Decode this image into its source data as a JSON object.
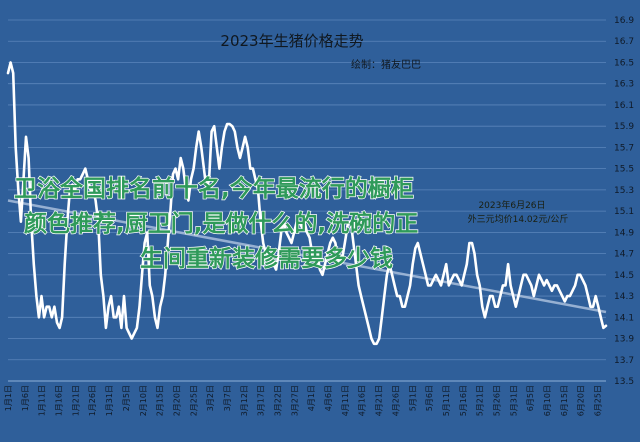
{
  "chart_data": {
    "type": "line",
    "title": "2023年生猪价格走势",
    "subtitle": "绘制：猪友巴巴",
    "annotation": {
      "line1": "2023年6月26日",
      "line2": "外三元均价14.02元/公斤"
    },
    "overlay_text": [
      "卫浴全国排名前十名,今年最流行的橱柜",
      "颜色推荐,厨卫门,是做什么的,洗碗的正",
      "生间重新装修需要多少钱"
    ],
    "ylim": [
      13.5,
      16.9
    ],
    "y_ticks": [
      "13.5",
      "13.7",
      "13.9",
      "14.1",
      "14.3",
      "14.5",
      "14.7",
      "14.9",
      "15.1",
      "15.3",
      "15.5",
      "15.7",
      "15.9",
      "16.1",
      "16.3",
      "16.5",
      "16.7",
      "16.9"
    ],
    "x_ticks": [
      "1月1日",
      "1月6日",
      "1月11日",
      "1月16日",
      "1月21日",
      "1月26日",
      "1月31日",
      "2月5日",
      "2月10日",
      "2月15日",
      "2月20日",
      "2月25日",
      "3月2日",
      "3月7日",
      "3月12日",
      "3月17日",
      "3月22日",
      "3月27日",
      "4月1日",
      "4月6日",
      "4月11日",
      "4月16日",
      "4月21日",
      "4月26日",
      "5月1日",
      "5月6日",
      "5月11日",
      "5月16日",
      "5月21日",
      "5月26日",
      "5月31日",
      "6月5日",
      "6月10日",
      "6月15日",
      "6月20日",
      "6月25日"
    ],
    "series": [
      {
        "values": [
          16.4,
          16.5,
          16.4,
          15.7,
          15.3,
          15.0,
          15.4,
          15.8,
          15.6,
          15.0,
          14.6,
          14.3,
          14.1,
          14.3,
          14.1,
          14.2,
          14.2,
          14.1,
          14.2,
          14.05,
          14.0,
          14.1,
          14.6,
          15.0,
          15.3,
          15.35,
          15.3,
          15.4,
          15.4,
          15.45,
          15.5,
          15.4,
          15.3,
          15.3,
          15.2,
          15.0,
          14.5,
          14.3,
          14.0,
          14.2,
          14.3,
          14.1,
          14.1,
          14.2,
          14.0,
          14.3,
          14.0,
          13.95,
          13.9,
          13.95,
          14.0,
          14.2,
          14.5,
          14.8,
          14.9,
          14.4,
          14.3,
          14.1,
          14.0,
          14.2,
          14.3,
          14.5,
          14.8,
          15.1,
          15.45,
          15.5,
          15.4,
          15.6,
          15.5,
          15.3,
          15.2,
          15.4,
          15.5,
          15.7,
          15.85,
          15.7,
          15.5,
          15.3,
          15.4,
          15.85,
          15.9,
          15.7,
          15.5,
          15.7,
          15.85,
          15.92,
          15.92,
          15.9,
          15.85,
          15.7,
          15.6,
          15.7,
          15.8,
          15.7,
          15.5,
          15.5,
          15.4,
          15.3,
          15.0,
          14.8,
          14.7,
          14.7,
          14.65,
          14.6,
          14.55,
          14.7,
          14.9,
          15.0,
          14.9,
          14.85,
          14.8,
          14.9,
          15.0,
          15.0,
          14.95,
          15.0,
          14.9,
          14.85,
          14.7,
          14.65,
          14.7,
          14.55,
          14.5,
          14.6,
          14.7,
          14.8,
          14.85,
          14.8,
          14.65,
          14.6,
          14.7,
          14.85,
          15.0,
          15.0,
          14.8,
          14.6,
          14.4,
          14.3,
          14.2,
          14.1,
          14.0,
          13.9,
          13.85,
          13.85,
          13.9,
          14.1,
          14.3,
          14.5,
          14.6,
          14.5,
          14.4,
          14.3,
          14.3,
          14.2,
          14.2,
          14.3,
          14.4,
          14.6,
          14.75,
          14.8,
          14.7,
          14.6,
          14.5,
          14.4,
          14.4,
          14.45,
          14.5,
          14.45,
          14.4,
          14.5,
          14.6,
          14.4,
          14.45,
          14.5,
          14.5,
          14.45,
          14.4,
          14.5,
          14.6,
          14.8,
          14.8,
          14.7,
          14.5,
          14.4,
          14.2,
          14.1,
          14.2,
          14.3,
          14.3,
          14.2,
          14.2,
          14.3,
          14.4,
          14.4,
          14.6,
          14.4,
          14.3,
          14.2,
          14.3,
          14.4,
          14.5,
          14.5,
          14.45,
          14.4,
          14.3,
          14.4,
          14.5,
          14.45,
          14.4,
          14.45,
          14.4,
          14.35,
          14.4,
          14.4,
          14.35,
          14.3,
          14.25,
          14.3,
          14.3,
          14.35,
          14.4,
          14.5,
          14.5,
          14.45,
          14.4,
          14.3,
          14.2,
          14.2,
          14.3,
          14.2,
          14.1,
          14.0,
          14.02
        ]
      },
      {
        "name": "trend",
        "values": [
          15.2,
          14.15
        ]
      }
    ],
    "grid": true,
    "y_axis_position": "right"
  }
}
